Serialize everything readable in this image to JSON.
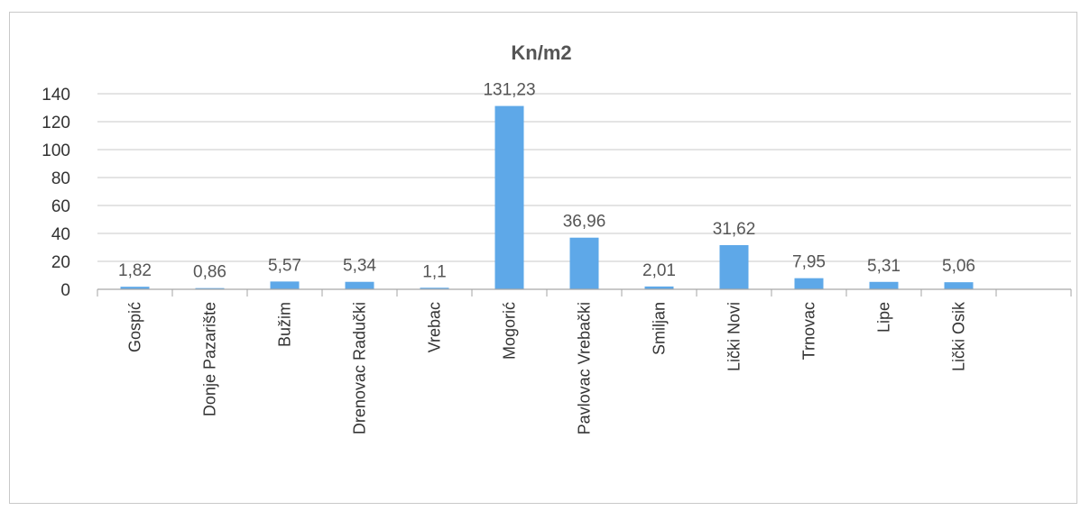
{
  "chart_data": {
    "type": "bar",
    "title": "Kn/m2",
    "xlabel": "",
    "ylabel": "",
    "ylim": [
      0,
      140
    ],
    "yticks": [
      "0",
      "20",
      "40",
      "60",
      "80",
      "100",
      "120",
      "140"
    ],
    "grid": true,
    "legend": "none",
    "bar_color": "#5ea8e8",
    "categories": [
      "Gospić",
      "Donje Pazarište",
      "Bužim",
      "Drenovac Radučki",
      "Vrebac",
      "Mogorić",
      "Pavlovac Vrebački",
      "Smiljan",
      "Lički Novi",
      "Trnovac",
      "Lipe",
      "Lički Osik"
    ],
    "values": [
      1.82,
      0.86,
      5.57,
      5.34,
      1.1,
      131.23,
      36.96,
      2.01,
      31.62,
      7.95,
      5.31,
      5.06
    ],
    "data_labels": [
      "1,82",
      "0,86",
      "5,57",
      "5,34",
      "1,1",
      "131,23",
      "36,96",
      "2,01",
      "31,62",
      "7,95",
      "5,31",
      "5,06"
    ]
  }
}
